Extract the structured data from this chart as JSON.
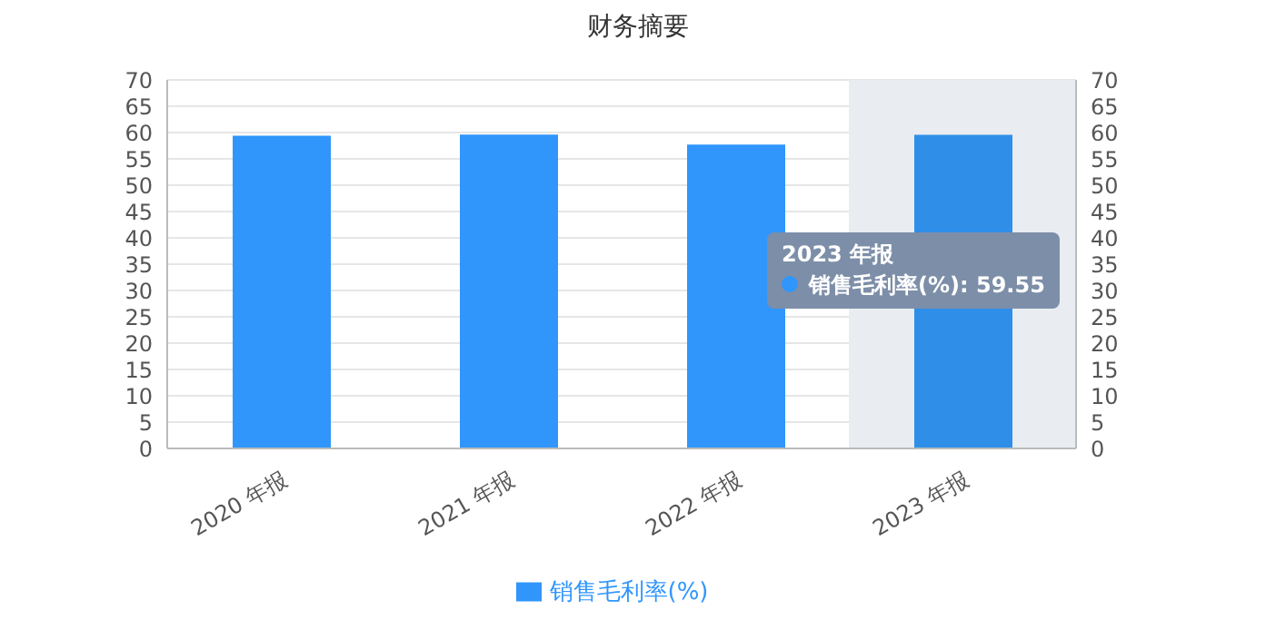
{
  "chart_data": {
    "type": "bar",
    "title": "财务摘要",
    "categories": [
      "2020 年报",
      "2021 年报",
      "2022 年报",
      "2023 年报"
    ],
    "series": [
      {
        "name": "销售毛利率(%)",
        "color": "#3096fc",
        "colors": [
          "#3096fc",
          "#3096fc",
          "#3096fc",
          "#2f8fe8"
        ],
        "values": [
          59.4,
          59.6,
          57.7,
          59.55
        ]
      }
    ],
    "ylim": [
      0,
      70
    ],
    "yticks": [
      0,
      5,
      10,
      15,
      20,
      25,
      30,
      35,
      40,
      45,
      50,
      55,
      60,
      65,
      70
    ],
    "y2lim": [
      0,
      70
    ],
    "y2ticks": [
      0,
      5,
      10,
      15,
      20,
      25,
      30,
      35,
      40,
      45,
      50,
      55,
      60,
      65,
      70
    ],
    "bands": [
      {
        "axis": "x",
        "from": "2023 年报",
        "to": "2023 年报",
        "color": "#e9ecf1"
      }
    ],
    "annotations": [
      "2023 年报",
      "销售毛利率(%): 59.55"
    ],
    "grid": "y",
    "legend": "bottom"
  }
}
